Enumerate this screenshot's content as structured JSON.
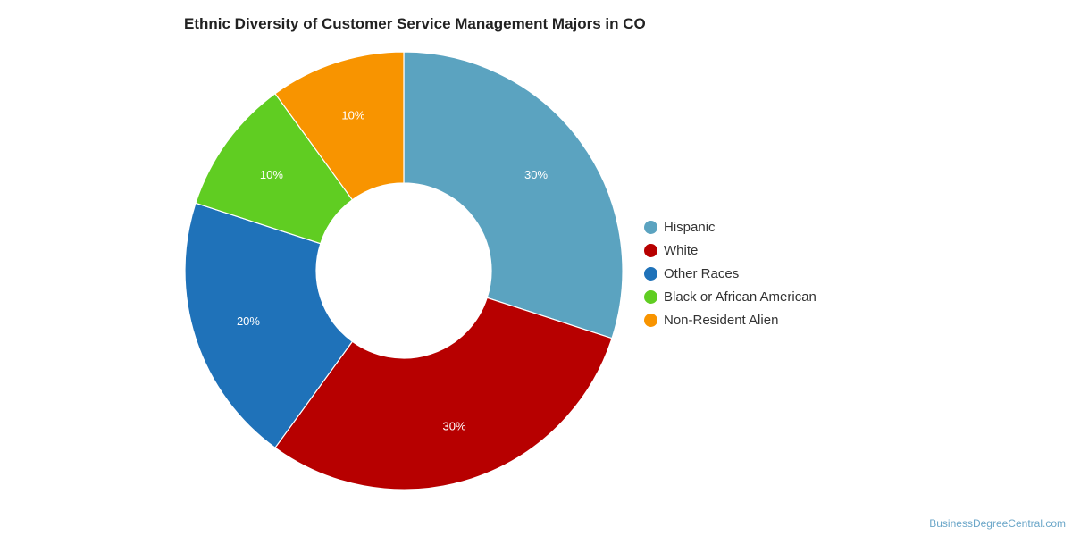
{
  "chart_data": {
    "type": "pie",
    "variant": "donut",
    "title": "Ethnic Diversity of Customer Service Management Majors in CO",
    "categories": [
      "Hispanic",
      "White",
      "Other Races",
      "Black or African American",
      "Non-Resident Alien"
    ],
    "values": [
      30,
      30,
      20,
      10,
      10
    ],
    "data_labels": [
      "30%",
      "30%",
      "20%",
      "10%",
      "10%"
    ],
    "colors": [
      "#5ba3c0",
      "#b70000",
      "#1f72b9",
      "#60cd22",
      "#f89400"
    ],
    "legend_position": "right",
    "start_angle": "12 o'clock",
    "direction": "clockwise"
  },
  "source": "BusinessDegreeCentral.com"
}
